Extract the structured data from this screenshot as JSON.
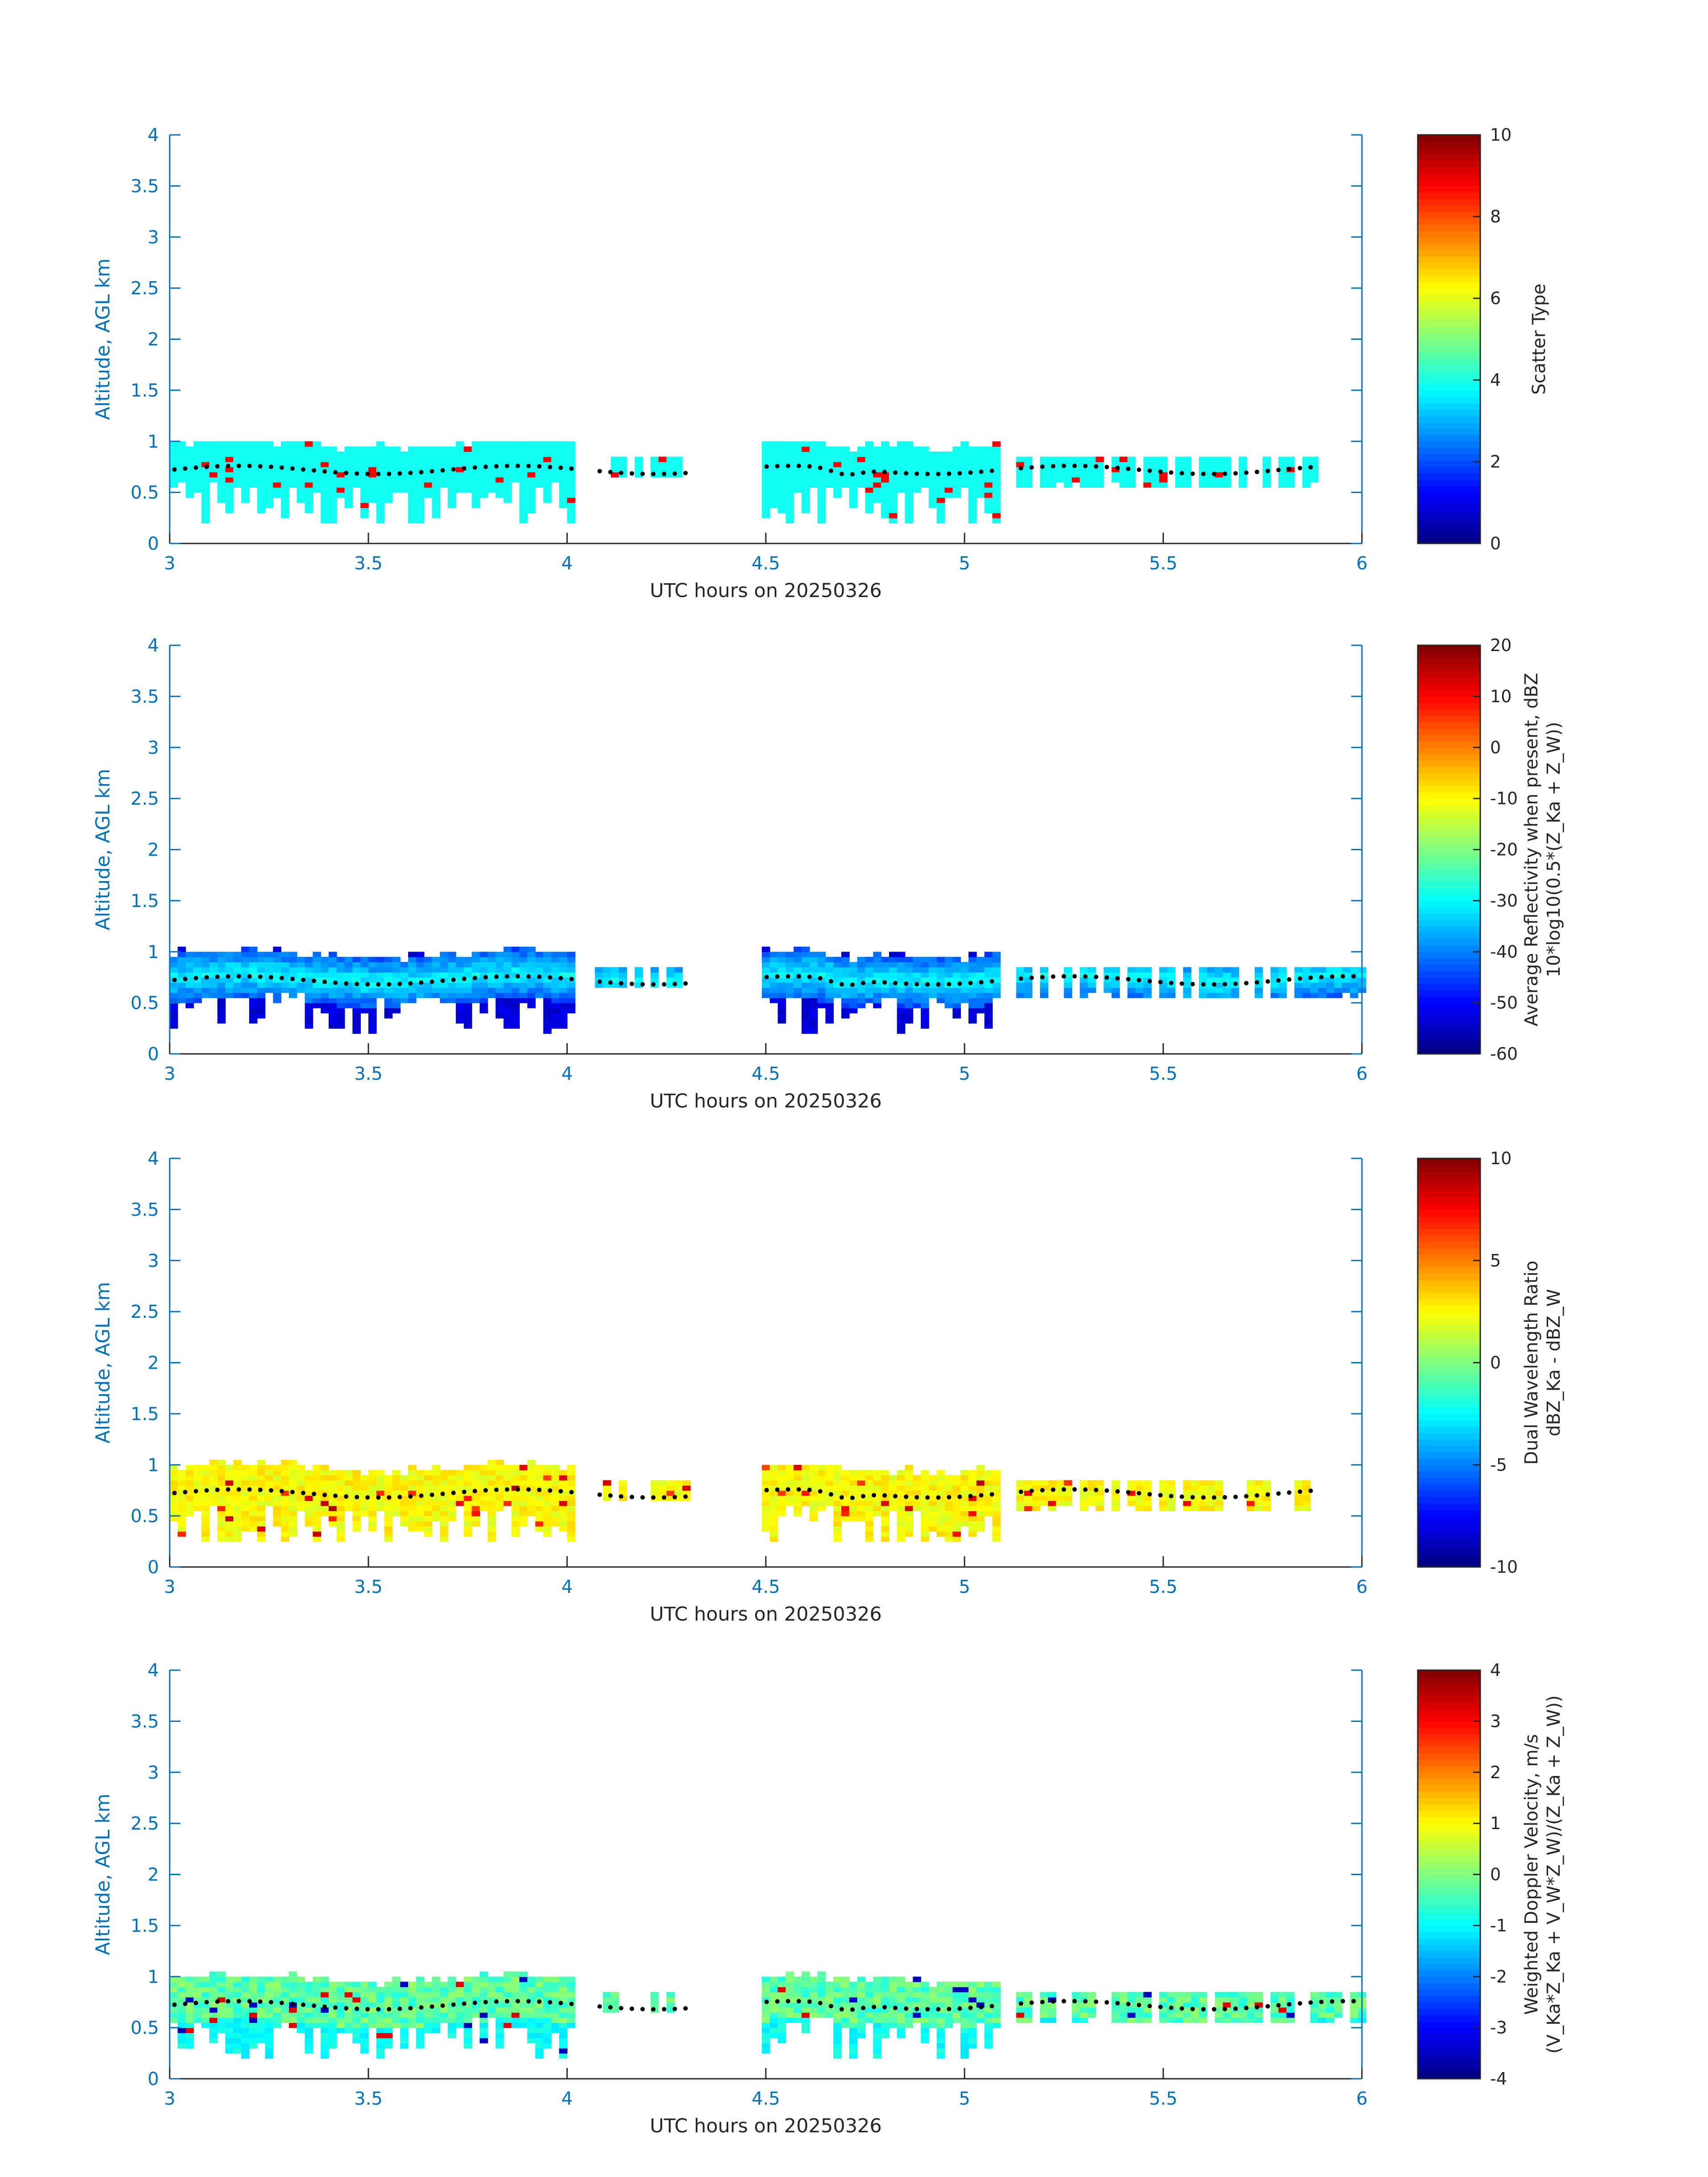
{
  "chart_data": [
    {
      "type": "heatmap",
      "xlabel": "UTC hours on 20250326",
      "ylabel": "Altitude, AGL km",
      "xlim": [
        3,
        6
      ],
      "ylim": [
        0,
        4
      ],
      "x_ticks": [
        "3",
        "3.5",
        "4",
        "4.5",
        "5",
        "5.5",
        "6"
      ],
      "y_ticks": [
        "0",
        "0.5",
        "1",
        "1.5",
        "2",
        "2.5",
        "3",
        "3.5",
        "4"
      ],
      "colormap": "jet",
      "colorbar": {
        "label_lines": [
          "Scatter Type"
        ],
        "range": [
          0,
          10
        ],
        "ticks": [
          "0",
          "2",
          "4",
          "6",
          "8",
          "10"
        ]
      },
      "field_value": 3.9,
      "dominant_color": "#38FFD8",
      "overlay_color": "#000000",
      "cloud_segments": [
        {
          "x_start": 3.0,
          "x_end": 4.02,
          "base": 0.2,
          "top": 1.0
        },
        {
          "x_start": 4.07,
          "x_end": 4.3,
          "base": 0.65,
          "top": 0.82
        },
        {
          "x_start": 4.49,
          "x_end": 5.09,
          "base": 0.2,
          "top": 1.0
        },
        {
          "x_start": 5.13,
          "x_end": 5.88,
          "base": 0.6,
          "top": 0.82
        }
      ]
    },
    {
      "type": "heatmap",
      "xlabel": "UTC hours on 20250326",
      "ylabel": "Altitude, AGL km",
      "xlim": [
        3,
        6
      ],
      "ylim": [
        0,
        4
      ],
      "x_ticks": [
        "3",
        "3.5",
        "4",
        "4.5",
        "5",
        "5.5",
        "6"
      ],
      "y_ticks": [
        "0",
        "0.5",
        "1",
        "1.5",
        "2",
        "2.5",
        "3",
        "3.5",
        "4"
      ],
      "colormap": "jet",
      "colorbar": {
        "label_lines": [
          "Average Reflectivity when present, dBZ",
          "10*log10(0.5*(Z_Ka + Z_W))"
        ],
        "range": [
          -60,
          20
        ],
        "ticks": [
          "-60",
          "-50",
          "-40",
          "-30",
          "-20",
          "-10",
          "0",
          "10",
          "20"
        ]
      },
      "field_value": -35,
      "dominant_color": "#00D8FF",
      "overlay_color": "#000000",
      "cloud_segments": [
        {
          "x_start": 3.0,
          "x_end": 4.02,
          "base": 0.2,
          "top": 1.05
        },
        {
          "x_start": 4.07,
          "x_end": 4.3,
          "base": 0.65,
          "top": 0.82
        },
        {
          "x_start": 4.49,
          "x_end": 5.09,
          "base": 0.2,
          "top": 1.05
        },
        {
          "x_start": 5.13,
          "x_end": 6.0,
          "base": 0.55,
          "top": 0.82
        }
      ]
    },
    {
      "type": "heatmap",
      "xlabel": "UTC hours on 20250326",
      "ylabel": "Altitude, AGL km",
      "xlim": [
        3,
        6
      ],
      "ylim": [
        0,
        4
      ],
      "x_ticks": [
        "3",
        "3.5",
        "4",
        "4.5",
        "5",
        "5.5",
        "6"
      ],
      "y_ticks": [
        "0",
        "0.5",
        "1",
        "1.5",
        "2",
        "2.5",
        "3",
        "3.5",
        "4"
      ],
      "colormap": "jet",
      "colorbar": {
        "label_lines": [
          "Dual Wavelength Ratio",
          "dBZ_Ka - dBZ_W"
        ],
        "range": [
          -10,
          10
        ],
        "ticks": [
          "-10",
          "-5",
          "0",
          "5",
          "10"
        ]
      },
      "field_value": 2.5,
      "dominant_color": "#F5F500",
      "overlay_color": "#000000",
      "cloud_segments": [
        {
          "x_start": 3.0,
          "x_end": 4.02,
          "base": 0.25,
          "top": 1.05
        },
        {
          "x_start": 4.07,
          "x_end": 4.3,
          "base": 0.65,
          "top": 0.82
        },
        {
          "x_start": 4.49,
          "x_end": 5.09,
          "base": 0.25,
          "top": 1.0
        },
        {
          "x_start": 5.13,
          "x_end": 5.88,
          "base": 0.6,
          "top": 0.82
        }
      ]
    },
    {
      "type": "heatmap",
      "xlabel": "UTC hours on 20250326",
      "ylabel": "Altitude, AGL km",
      "xlim": [
        3,
        6
      ],
      "ylim": [
        0,
        4
      ],
      "x_ticks": [
        "3",
        "3.5",
        "4",
        "4.5",
        "5",
        "5.5",
        "6"
      ],
      "y_ticks": [
        "0",
        "0.5",
        "1",
        "1.5",
        "2",
        "2.5",
        "3",
        "3.5",
        "4"
      ],
      "colormap": "jet",
      "colorbar": {
        "label_lines": [
          "Weighted Doppler Velocity, m/s",
          "(V_Ka*Z_Ka + V_W*Z_W)/(Z_Ka + Z_W))"
        ],
        "range": [
          -4,
          4
        ],
        "ticks": [
          "-4",
          "-3",
          "-2",
          "-1",
          "0",
          "1",
          "2",
          "3",
          "4"
        ]
      },
      "field_value": -0.3,
      "dominant_color": "#9BFF63",
      "overlay_color": "#000000",
      "cloud_segments": [
        {
          "x_start": 3.0,
          "x_end": 4.02,
          "base": 0.2,
          "top": 1.05
        },
        {
          "x_start": 4.07,
          "x_end": 4.3,
          "base": 0.65,
          "top": 0.82
        },
        {
          "x_start": 4.49,
          "x_end": 5.09,
          "base": 0.2,
          "top": 1.05
        },
        {
          "x_start": 5.13,
          "x_end": 6.0,
          "base": 0.55,
          "top": 0.82
        }
      ]
    }
  ]
}
